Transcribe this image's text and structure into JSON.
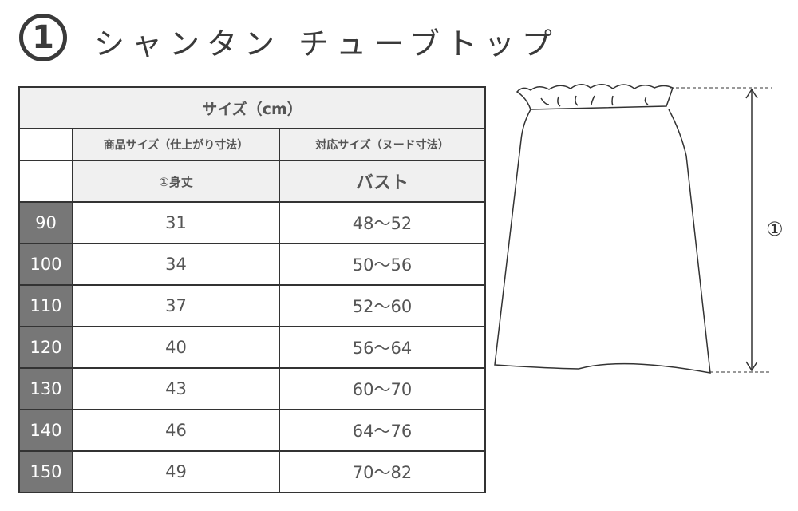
{
  "title": {
    "number": "1",
    "text": "シャンタン チューブトップ"
  },
  "table": {
    "caption": "サイズ（cm）",
    "col_groups": [
      "商品サイズ（仕上がり寸法）",
      "対応サイズ（ヌード寸法）"
    ],
    "col_labels": [
      "①身丈",
      "バスト"
    ],
    "rows": [
      {
        "size": "90",
        "length": "31",
        "bust": "48～52"
      },
      {
        "size": "100",
        "length": "34",
        "bust": "50～56"
      },
      {
        "size": "110",
        "length": "37",
        "bust": "52～60"
      },
      {
        "size": "120",
        "length": "40",
        "bust": "56～64"
      },
      {
        "size": "130",
        "length": "43",
        "bust": "60～70"
      },
      {
        "size": "140",
        "length": "46",
        "bust": "64～76"
      },
      {
        "size": "150",
        "length": "49",
        "bust": "70～82"
      }
    ]
  },
  "diagram": {
    "measure_label": "①"
  }
}
